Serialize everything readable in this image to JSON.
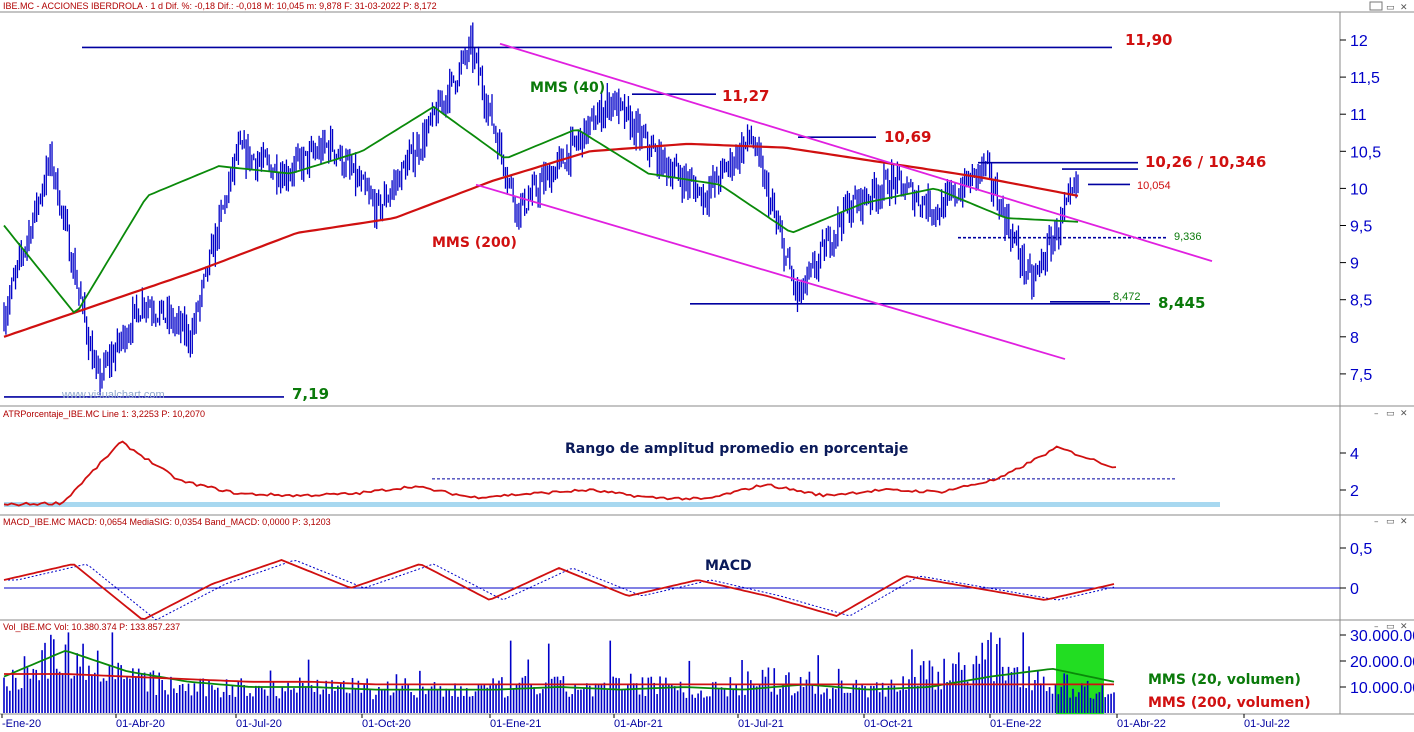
{
  "header": {
    "main": "IBE.MC - ACCIONES IBERDROLA · 1 d  Dif. %: -0,18  Dif.: -0,018  M: 10,045  m: 9,878  F: 31-03-2022  P: 8,172",
    "atr": "ATRPorcentaje_IBE.MC  Line 1: 3,2253  P: 10,2070",
    "macd": "MACD_IBE.MC  MACD: 0,0654  MediaSIG: 0,0354  Band_MACD: 0,0000  P: 3,1203",
    "vol": "Vol_IBE.MC  Vol: 10.380.374  P: 133.857.237"
  },
  "watermark": "www.visualchart.com",
  "annotations": {
    "mms40": "MMS (40)",
    "mms200": "MMS (200)",
    "atr_title": "Rango de amplitud promedio en porcentaje",
    "macd_title": "MACD",
    "vol_mms20": "MMS (20, volumen)",
    "vol_mms200": "MMS (200, volumen)"
  },
  "levels": {
    "l1190": "11,90",
    "l1127": "11,27",
    "l1069": "10,69",
    "l1026": "10,26 / 10,346",
    "l10054": "10,054",
    "l9336": "9,336",
    "l8472": "8,472",
    "l8445": "8,445",
    "l719": "7,19"
  },
  "colors": {
    "price": "#0000c8",
    "mms40": "#0a8a0a",
    "mms200": "#d01010",
    "channel": "#e020e0",
    "levels": "#0000a0",
    "volume_highlight": "#22dd22",
    "atr_band": "#a8d8f0"
  },
  "chart_data": [
    {
      "type": "line",
      "name": "price",
      "y_axis_ticks": [
        "12",
        "11,5",
        "11",
        "10,5",
        "10",
        "9,5",
        "9",
        "8,5",
        "8",
        "7,5"
      ],
      "ylim": [
        7,
        12.2
      ],
      "x_ticks": [
        "-Ene-20",
        "01-Abr-20",
        "01-Jul-20",
        "01-Oct-20",
        "01-Ene-21",
        "01-Abr-21",
        "01-Jul-21",
        "01-Oct-21",
        "01-Ene-22",
        "01-Abr-22",
        "01-Jul-22"
      ],
      "series": [
        {
          "name": "MMS (40)",
          "values": [
            9.5,
            8.3,
            9.9,
            10.3,
            10.2,
            10.5,
            11.1,
            10.4,
            10.8,
            10.2,
            10.05,
            9.4,
            9.8,
            10.0,
            9.6,
            9.55
          ]
        },
        {
          "name": "MMS (200)",
          "values": [
            8.0,
            8.45,
            8.9,
            9.4,
            9.6,
            10.1,
            10.5,
            10.6,
            10.55,
            10.35,
            10.15,
            9.9
          ]
        }
      ],
      "close": [
        8.3,
        10.4,
        7.4,
        8.5,
        8.0,
        10.5,
        10.2,
        10.6,
        9.7,
        10.7,
        11.9,
        9.7,
        10.4,
        11.2,
        10.4,
        9.9,
        10.7,
        8.5,
        9.7,
        10.1,
        9.7,
        10.3,
        8.7,
        10.05
      ],
      "levels": [
        11.9,
        11.27,
        10.69,
        10.346,
        10.26,
        10.054,
        9.336,
        8.472,
        8.445,
        7.19
      ]
    },
    {
      "type": "line",
      "name": "ATR porcentaje",
      "y_axis_ticks": [
        "4",
        "2"
      ],
      "values": [
        1.2,
        1.3,
        4.6,
        2.5,
        1.8,
        1.7,
        1.8,
        2.2,
        1.6,
        1.8,
        2.0,
        1.6,
        1.5,
        2.3,
        1.7,
        2.0,
        1.9,
        2.6,
        4.3,
        3.2
      ]
    },
    {
      "type": "line",
      "name": "MACD",
      "y_axis_ticks": [
        "0,5",
        "0"
      ],
      "values": [
        0.1,
        0.3,
        -0.4,
        0.05,
        0.35,
        0.0,
        0.3,
        -0.15,
        0.25,
        -0.1,
        0.1,
        -0.1,
        -0.35,
        0.15,
        0.0,
        -0.15,
        0.05
      ]
    },
    {
      "type": "bar",
      "name": "Volumen",
      "y_axis_ticks": [
        "30.000.000",
        "20.000.000",
        "10.000.000"
      ],
      "values": [
        14,
        30,
        18,
        12,
        11,
        13,
        12,
        10,
        11,
        13,
        12,
        14,
        10,
        16,
        11,
        12,
        20,
        26,
        14,
        10
      ]
    }
  ]
}
